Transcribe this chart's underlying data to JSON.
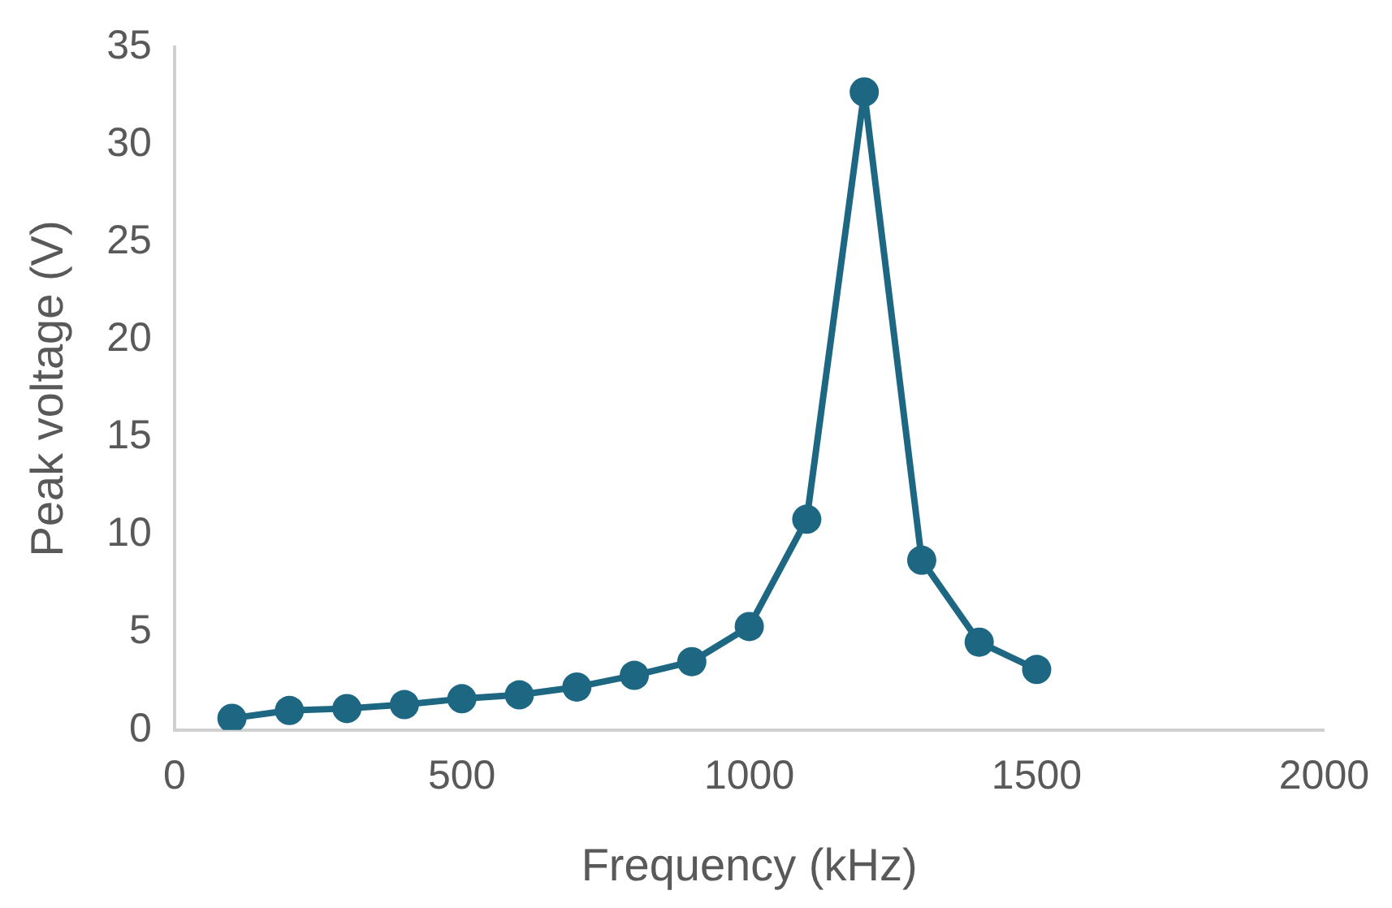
{
  "chart_data": {
    "type": "line",
    "xlabel": "Frequency (kHz)",
    "ylabel": "Peak voltage (V)",
    "x": [
      100,
      200,
      300,
      400,
      500,
      600,
      700,
      800,
      900,
      1000,
      1100,
      1200,
      1300,
      1400,
      1500
    ],
    "series": [
      {
        "color": "#1d6783",
        "values": [
          0.6,
          1.0,
          1.1,
          1.3,
          1.6,
          1.8,
          2.2,
          2.8,
          3.5,
          5.3,
          10.8,
          32.7,
          8.7,
          4.5,
          3.1
        ]
      }
    ],
    "xlim": [
      0,
      2000
    ],
    "xticks": [
      0,
      500,
      1000,
      1500,
      2000
    ],
    "ylim": [
      0,
      35
    ],
    "yticks": [
      0,
      5,
      10,
      15,
      20,
      25,
      30,
      35
    ],
    "grid": false,
    "legend": false,
    "marker": "circle",
    "line_style": "solid"
  }
}
